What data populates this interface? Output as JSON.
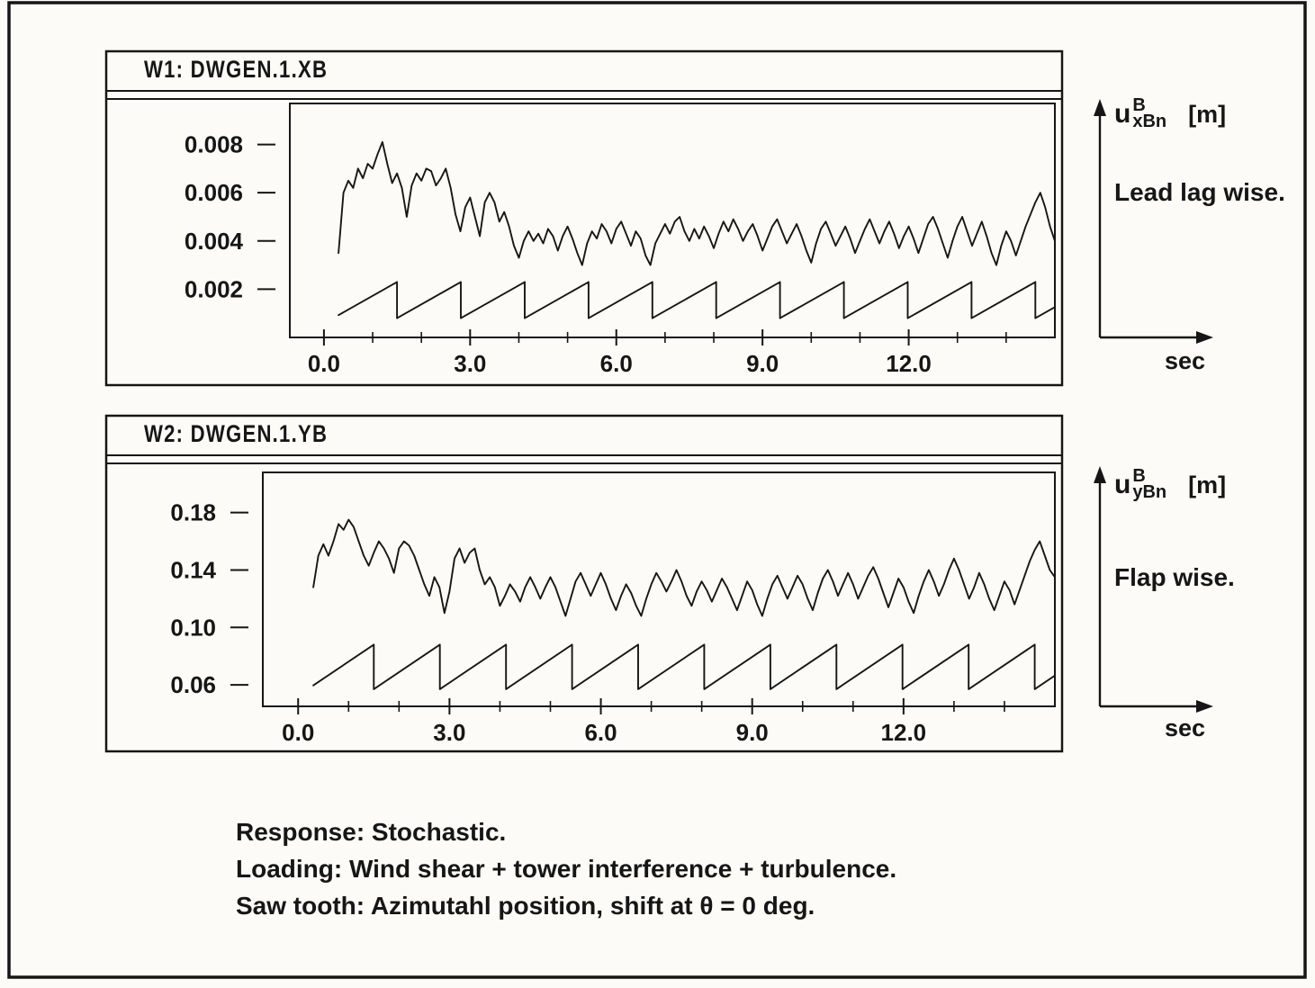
{
  "caption": {
    "lines": [
      "Response: Stochastic.",
      "Loading: Wind shear + tower interference + turbulence.",
      "Saw tooth: Azimutahl position, shift at θ = 0 deg."
    ]
  },
  "chart_data": [
    {
      "type": "line",
      "title": "W1: DWGEN.1.XB",
      "side_label": "Lead lag wise.",
      "ylabel": {
        "symbol": "u",
        "sup": "B",
        "sub": "xBn",
        "unit": "[m]"
      },
      "xlabel": "sec",
      "xlim": [
        -0.7,
        15.0
      ],
      "ylim": [
        0,
        0.0097
      ],
      "xticks": [
        0,
        3,
        6,
        9,
        12
      ],
      "xtick_labels": [
        "0.0",
        "3.0",
        "6.0",
        "9.0",
        "12.0"
      ],
      "minor_xtick_step": 1,
      "yticks": [
        0.002,
        0.004,
        0.006,
        0.008
      ],
      "ytick_labels": [
        "0.002",
        "0.004",
        "0.006",
        "0.008"
      ],
      "grid": false,
      "series": [
        {
          "name": "response",
          "type": "line",
          "t0": 0.3,
          "dt": 0.1,
          "y": [
            0.0035,
            0.006,
            0.0065,
            0.0062,
            0.007,
            0.0066,
            0.0072,
            0.007,
            0.0076,
            0.0081,
            0.0072,
            0.0064,
            0.0068,
            0.0062,
            0.005,
            0.0063,
            0.0068,
            0.0065,
            0.007,
            0.0069,
            0.0063,
            0.0066,
            0.007,
            0.0062,
            0.0051,
            0.0044,
            0.0054,
            0.0058,
            0.005,
            0.0042,
            0.0056,
            0.006,
            0.0056,
            0.0048,
            0.0052,
            0.0046,
            0.0038,
            0.0033,
            0.004,
            0.0044,
            0.004,
            0.0043,
            0.0039,
            0.0045,
            0.0042,
            0.0036,
            0.0042,
            0.0046,
            0.0041,
            0.0035,
            0.003,
            0.0039,
            0.0044,
            0.0041,
            0.0047,
            0.0044,
            0.0039,
            0.0045,
            0.0048,
            0.0043,
            0.0038,
            0.0044,
            0.0041,
            0.0034,
            0.003,
            0.0039,
            0.0043,
            0.0047,
            0.0043,
            0.0048,
            0.005,
            0.0044,
            0.004,
            0.0045,
            0.0041,
            0.0046,
            0.0042,
            0.0037,
            0.0043,
            0.0048,
            0.0044,
            0.0049,
            0.0045,
            0.004,
            0.0044,
            0.0047,
            0.0042,
            0.0036,
            0.0041,
            0.0046,
            0.0049,
            0.0044,
            0.0039,
            0.0043,
            0.0047,
            0.0042,
            0.0036,
            0.0031,
            0.0039,
            0.0045,
            0.0048,
            0.0043,
            0.0038,
            0.0042,
            0.0046,
            0.0041,
            0.0035,
            0.004,
            0.0045,
            0.0049,
            0.0044,
            0.0039,
            0.0044,
            0.0048,
            0.0043,
            0.0037,
            0.0042,
            0.0046,
            0.0041,
            0.0035,
            0.0041,
            0.0047,
            0.005,
            0.0045,
            0.0039,
            0.0033,
            0.004,
            0.0046,
            0.005,
            0.0044,
            0.0038,
            0.0043,
            0.0048,
            0.0042,
            0.0035,
            0.003,
            0.0038,
            0.0044,
            0.004,
            0.0034,
            0.004,
            0.0046,
            0.0051,
            0.0056,
            0.006,
            0.0054,
            0.0046,
            0.004
          ]
        },
        {
          "name": "azimuth-sawtooth",
          "type": "sawtooth",
          "t_start": 0.3,
          "t_end": 15.0,
          "period": 1.31,
          "first_drop": 1.5,
          "min": 0.0008,
          "max": 0.0023
        }
      ]
    },
    {
      "type": "line",
      "title": "W2: DWGEN.1.YB",
      "side_label": "Flap wise.",
      "ylabel": {
        "symbol": "u",
        "sup": "B",
        "sub": "yBn",
        "unit": "[m]"
      },
      "xlabel": "sec",
      "xlim": [
        -0.7,
        15.0
      ],
      "ylim": [
        0.045,
        0.208
      ],
      "xticks": [
        0,
        3,
        6,
        9,
        12
      ],
      "xtick_labels": [
        "0.0",
        "3.0",
        "6.0",
        "9.0",
        "12.0"
      ],
      "minor_xtick_step": 1,
      "yticks": [
        0.06,
        0.1,
        0.14,
        0.18
      ],
      "ytick_labels": [
        "0.06",
        "0.10",
        "0.14",
        "0.18"
      ],
      "grid": false,
      "series": [
        {
          "name": "response",
          "type": "line",
          "t0": 0.3,
          "dt": 0.1,
          "y": [
            0.128,
            0.15,
            0.158,
            0.15,
            0.16,
            0.172,
            0.168,
            0.175,
            0.17,
            0.16,
            0.15,
            0.143,
            0.152,
            0.16,
            0.155,
            0.148,
            0.138,
            0.155,
            0.16,
            0.157,
            0.15,
            0.14,
            0.13,
            0.122,
            0.135,
            0.128,
            0.11,
            0.125,
            0.148,
            0.155,
            0.145,
            0.152,
            0.155,
            0.14,
            0.13,
            0.135,
            0.128,
            0.115,
            0.122,
            0.13,
            0.125,
            0.118,
            0.128,
            0.135,
            0.128,
            0.12,
            0.128,
            0.135,
            0.128,
            0.118,
            0.108,
            0.12,
            0.132,
            0.138,
            0.13,
            0.122,
            0.13,
            0.138,
            0.13,
            0.12,
            0.112,
            0.122,
            0.13,
            0.124,
            0.115,
            0.108,
            0.12,
            0.13,
            0.138,
            0.132,
            0.125,
            0.132,
            0.14,
            0.132,
            0.122,
            0.115,
            0.125,
            0.132,
            0.126,
            0.118,
            0.126,
            0.134,
            0.128,
            0.12,
            0.112,
            0.122,
            0.132,
            0.126,
            0.116,
            0.108,
            0.12,
            0.13,
            0.136,
            0.128,
            0.12,
            0.128,
            0.136,
            0.13,
            0.12,
            0.112,
            0.124,
            0.134,
            0.14,
            0.132,
            0.122,
            0.13,
            0.138,
            0.13,
            0.12,
            0.128,
            0.136,
            0.142,
            0.134,
            0.124,
            0.114,
            0.124,
            0.134,
            0.128,
            0.118,
            0.11,
            0.122,
            0.132,
            0.14,
            0.132,
            0.122,
            0.13,
            0.14,
            0.148,
            0.14,
            0.13,
            0.12,
            0.128,
            0.138,
            0.13,
            0.12,
            0.112,
            0.122,
            0.132,
            0.126,
            0.116,
            0.126,
            0.136,
            0.146,
            0.154,
            0.16,
            0.15,
            0.14,
            0.135
          ]
        },
        {
          "name": "azimuth-sawtooth",
          "type": "sawtooth",
          "t_start": 0.3,
          "t_end": 15.0,
          "period": 1.31,
          "first_drop": 1.5,
          "min": 0.057,
          "max": 0.088
        }
      ]
    }
  ]
}
